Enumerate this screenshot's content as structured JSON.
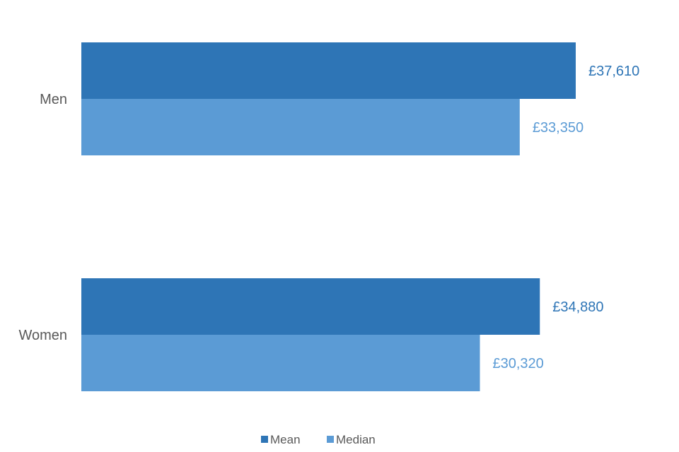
{
  "chart_data": {
    "type": "bar",
    "orientation": "horizontal",
    "categories": [
      "Men",
      "Women"
    ],
    "series": [
      {
        "name": "Mean",
        "color": "#2E75B6",
        "values": [
          37610,
          34880
        ],
        "labels": [
          "£37,610",
          "£34,880"
        ]
      },
      {
        "name": "Median",
        "color": "#5B9BD5",
        "values": [
          33350,
          30320
        ],
        "labels": [
          "£33,350",
          "£30,320"
        ]
      }
    ],
    "xlim": [
      0,
      37610
    ],
    "grid": false,
    "legend": "bottom-center",
    "axes_visible": false
  }
}
